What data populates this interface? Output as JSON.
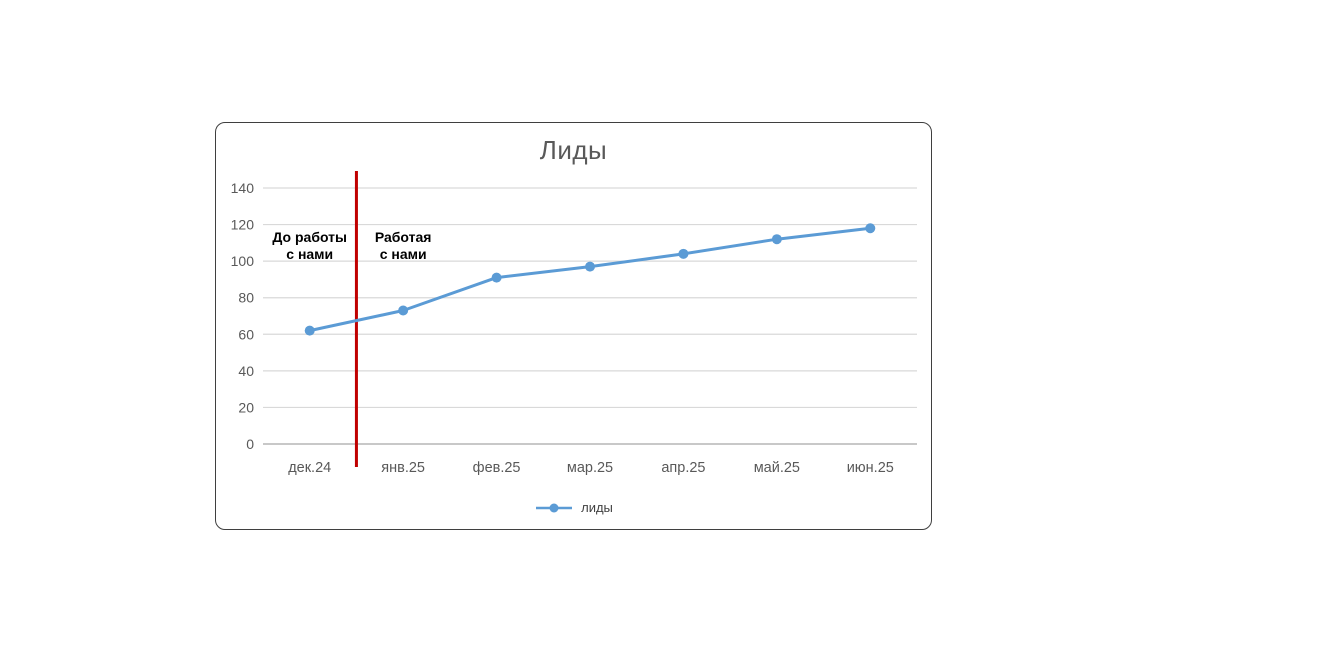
{
  "chart_data": {
    "type": "line",
    "title": "Лиды",
    "categories": [
      "дек.24",
      "янв.25",
      "фев.25",
      "мар.25",
      "апр.25",
      "май.25",
      "июн.25"
    ],
    "series": [
      {
        "name": "лиды",
        "values": [
          62,
          73,
          91,
          97,
          104,
          112,
          118
        ],
        "color": "#5b9bd5"
      }
    ],
    "ylim": [
      0,
      140
    ],
    "yticks": [
      0,
      20,
      40,
      60,
      80,
      100,
      120,
      140
    ],
    "grid": true,
    "legend_position": "bottom",
    "annotations": [
      {
        "name": "before-divider",
        "lines": [
          "До работы",
          "с нами"
        ],
        "anchor_category": "дек.24"
      },
      {
        "name": "after-divider",
        "lines": [
          "Работая",
          "с нами"
        ],
        "anchor_category": "янв.25"
      }
    ],
    "divider": {
      "between": [
        "дек.24",
        "янв.25"
      ],
      "color": "#c00000"
    },
    "colors": {
      "grid": "#d9d9d9",
      "axis": "#a6a6a6",
      "tick_text": "#595959",
      "title_text": "#595959",
      "annotation_text": "#000000",
      "legend_text": "#404040",
      "divider": "#c00000"
    }
  }
}
